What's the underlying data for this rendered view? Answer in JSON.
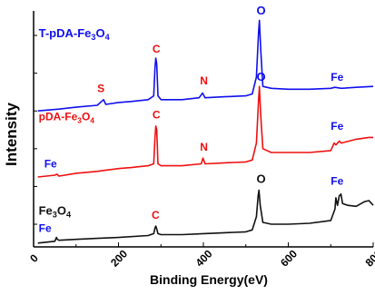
{
  "chart_data": {
    "type": "line",
    "xlabel": "Binding Energy(eV)",
    "ylabel": "Intensity",
    "xlim": [
      0,
      800
    ],
    "x_ticks": [
      "0",
      "200",
      "400",
      "600",
      "800"
    ],
    "grid": false,
    "series": [
      {
        "name": "T-pDA-Fe3O4",
        "color": "#1010ee",
        "points": [
          [
            10,
            0.72
          ],
          [
            60,
            0.73
          ],
          [
            100,
            0.74
          ],
          [
            150,
            0.75
          ],
          [
            165,
            0.78
          ],
          [
            170,
            0.755
          ],
          [
            200,
            0.765
          ],
          [
            230,
            0.77
          ],
          [
            270,
            0.78
          ],
          [
            283,
            0.8
          ],
          [
            286,
            0.95
          ],
          [
            288,
            1.0
          ],
          [
            290,
            0.97
          ],
          [
            293,
            0.8
          ],
          [
            300,
            0.78
          ],
          [
            350,
            0.78
          ],
          [
            390,
            0.79
          ],
          [
            398,
            0.815
          ],
          [
            404,
            0.79
          ],
          [
            450,
            0.795
          ],
          [
            500,
            0.8
          ],
          [
            515,
            0.81
          ],
          [
            525,
            0.9
          ],
          [
            530,
            1.14
          ],
          [
            532,
            1.2
          ],
          [
            535,
            1.05
          ],
          [
            540,
            0.85
          ],
          [
            560,
            0.84
          ],
          [
            600,
            0.835
          ],
          [
            650,
            0.835
          ],
          [
            700,
            0.84
          ],
          [
            710,
            0.845
          ],
          [
            725,
            0.84
          ],
          [
            760,
            0.845
          ],
          [
            800,
            0.85
          ]
        ]
      },
      {
        "name": "pDA-Fe3O4",
        "color": "#ee1010",
        "points": [
          [
            10,
            0.37
          ],
          [
            50,
            0.38
          ],
          [
            55,
            0.385
          ],
          [
            60,
            0.375
          ],
          [
            100,
            0.39
          ],
          [
            150,
            0.4
          ],
          [
            165,
            0.405
          ],
          [
            200,
            0.415
          ],
          [
            230,
            0.42
          ],
          [
            270,
            0.43
          ],
          [
            283,
            0.44
          ],
          [
            286,
            0.58
          ],
          [
            288,
            0.64
          ],
          [
            290,
            0.62
          ],
          [
            293,
            0.44
          ],
          [
            300,
            0.43
          ],
          [
            350,
            0.43
          ],
          [
            395,
            0.44
          ],
          [
            399,
            0.47
          ],
          [
            404,
            0.44
          ],
          [
            450,
            0.445
          ],
          [
            500,
            0.45
          ],
          [
            515,
            0.46
          ],
          [
            525,
            0.55
          ],
          [
            530,
            0.78
          ],
          [
            532,
            0.85
          ],
          [
            535,
            0.7
          ],
          [
            540,
            0.52
          ],
          [
            560,
            0.5
          ],
          [
            600,
            0.5
          ],
          [
            650,
            0.5
          ],
          [
            700,
            0.51
          ],
          [
            708,
            0.55
          ],
          [
            712,
            0.54
          ],
          [
            720,
            0.56
          ],
          [
            725,
            0.55
          ],
          [
            760,
            0.57
          ],
          [
            790,
            0.58
          ],
          [
            800,
            0.58
          ]
        ]
      },
      {
        "name": "Fe3O4",
        "color": "#111111",
        "points": [
          [
            10,
            0.02
          ],
          [
            50,
            0.03
          ],
          [
            54,
            0.05
          ],
          [
            56,
            0.04
          ],
          [
            60,
            0.035
          ],
          [
            100,
            0.04
          ],
          [
            150,
            0.045
          ],
          [
            200,
            0.05
          ],
          [
            270,
            0.06
          ],
          [
            283,
            0.07
          ],
          [
            286,
            0.1
          ],
          [
            288,
            0.11
          ],
          [
            290,
            0.095
          ],
          [
            293,
            0.07
          ],
          [
            300,
            0.065
          ],
          [
            350,
            0.065
          ],
          [
            400,
            0.07
          ],
          [
            450,
            0.075
          ],
          [
            500,
            0.08
          ],
          [
            515,
            0.09
          ],
          [
            525,
            0.16
          ],
          [
            529,
            0.27
          ],
          [
            531,
            0.3
          ],
          [
            534,
            0.22
          ],
          [
            540,
            0.13
          ],
          [
            560,
            0.12
          ],
          [
            600,
            0.12
          ],
          [
            650,
            0.125
          ],
          [
            700,
            0.14
          ],
          [
            710,
            0.2
          ],
          [
            712,
            0.26
          ],
          [
            716,
            0.22
          ],
          [
            720,
            0.27
          ],
          [
            724,
            0.28
          ],
          [
            728,
            0.23
          ],
          [
            740,
            0.22
          ],
          [
            760,
            0.215
          ],
          [
            780,
            0.24
          ],
          [
            790,
            0.245
          ],
          [
            800,
            0.22
          ]
        ]
      }
    ],
    "annotations": [
      {
        "text": "T-pDA-Fe",
        "sub": "3",
        "tail": "O",
        "sub2": "4",
        "x": 12,
        "y": 1.11,
        "color": "#1010ee",
        "size": 13
      },
      {
        "text": "S",
        "x": 150,
        "y": 0.82,
        "color": "#ee1010",
        "size": 12
      },
      {
        "text": "C",
        "x": 280,
        "y": 1.03,
        "color": "#ee1010",
        "size": 12
      },
      {
        "text": "N",
        "x": 392,
        "y": 0.86,
        "color": "#ee1010",
        "size": 12
      },
      {
        "text": "O",
        "x": 525,
        "y": 1.23,
        "color": "#1010ee",
        "size": 13
      },
      {
        "text": "Fe",
        "x": 700,
        "y": 0.88,
        "color": "#1010ee",
        "size": 12
      },
      {
        "text": "pDA-Fe",
        "sub": "3",
        "tail": "O",
        "sub2": "4",
        "x": 12,
        "y": 0.67,
        "color": "#ee1010",
        "size": 12
      },
      {
        "text": "C",
        "x": 280,
        "y": 0.68,
        "color": "#ee1010",
        "size": 12
      },
      {
        "text": "N",
        "x": 392,
        "y": 0.51,
        "color": "#ee1010",
        "size": 12
      },
      {
        "text": "O",
        "x": 525,
        "y": 0.88,
        "color": "#1010ee",
        "size": 13
      },
      {
        "text": "Fe",
        "x": 700,
        "y": 0.62,
        "color": "#1010ee",
        "size": 12
      },
      {
        "text": "Fe",
        "x": 25,
        "y": 0.42,
        "color": "#1010ee",
        "size": 12
      },
      {
        "text": "O",
        "x": 525,
        "y": 0.34,
        "color": "#111111",
        "size": 13
      },
      {
        "text": "Fe",
        "x": 700,
        "y": 0.33,
        "color": "#1010ee",
        "size": 12
      },
      {
        "text": "Fe",
        "sub": "3",
        "tail": "O",
        "sub2": "4",
        "x": 12,
        "y": 0.17,
        "color": "#111111",
        "size": 13
      },
      {
        "text": "Fe",
        "x": 12,
        "y": 0.08,
        "color": "#1010ee",
        "size": 12
      },
      {
        "text": "C",
        "x": 278,
        "y": 0.15,
        "color": "#ee1010",
        "size": 12
      }
    ]
  }
}
